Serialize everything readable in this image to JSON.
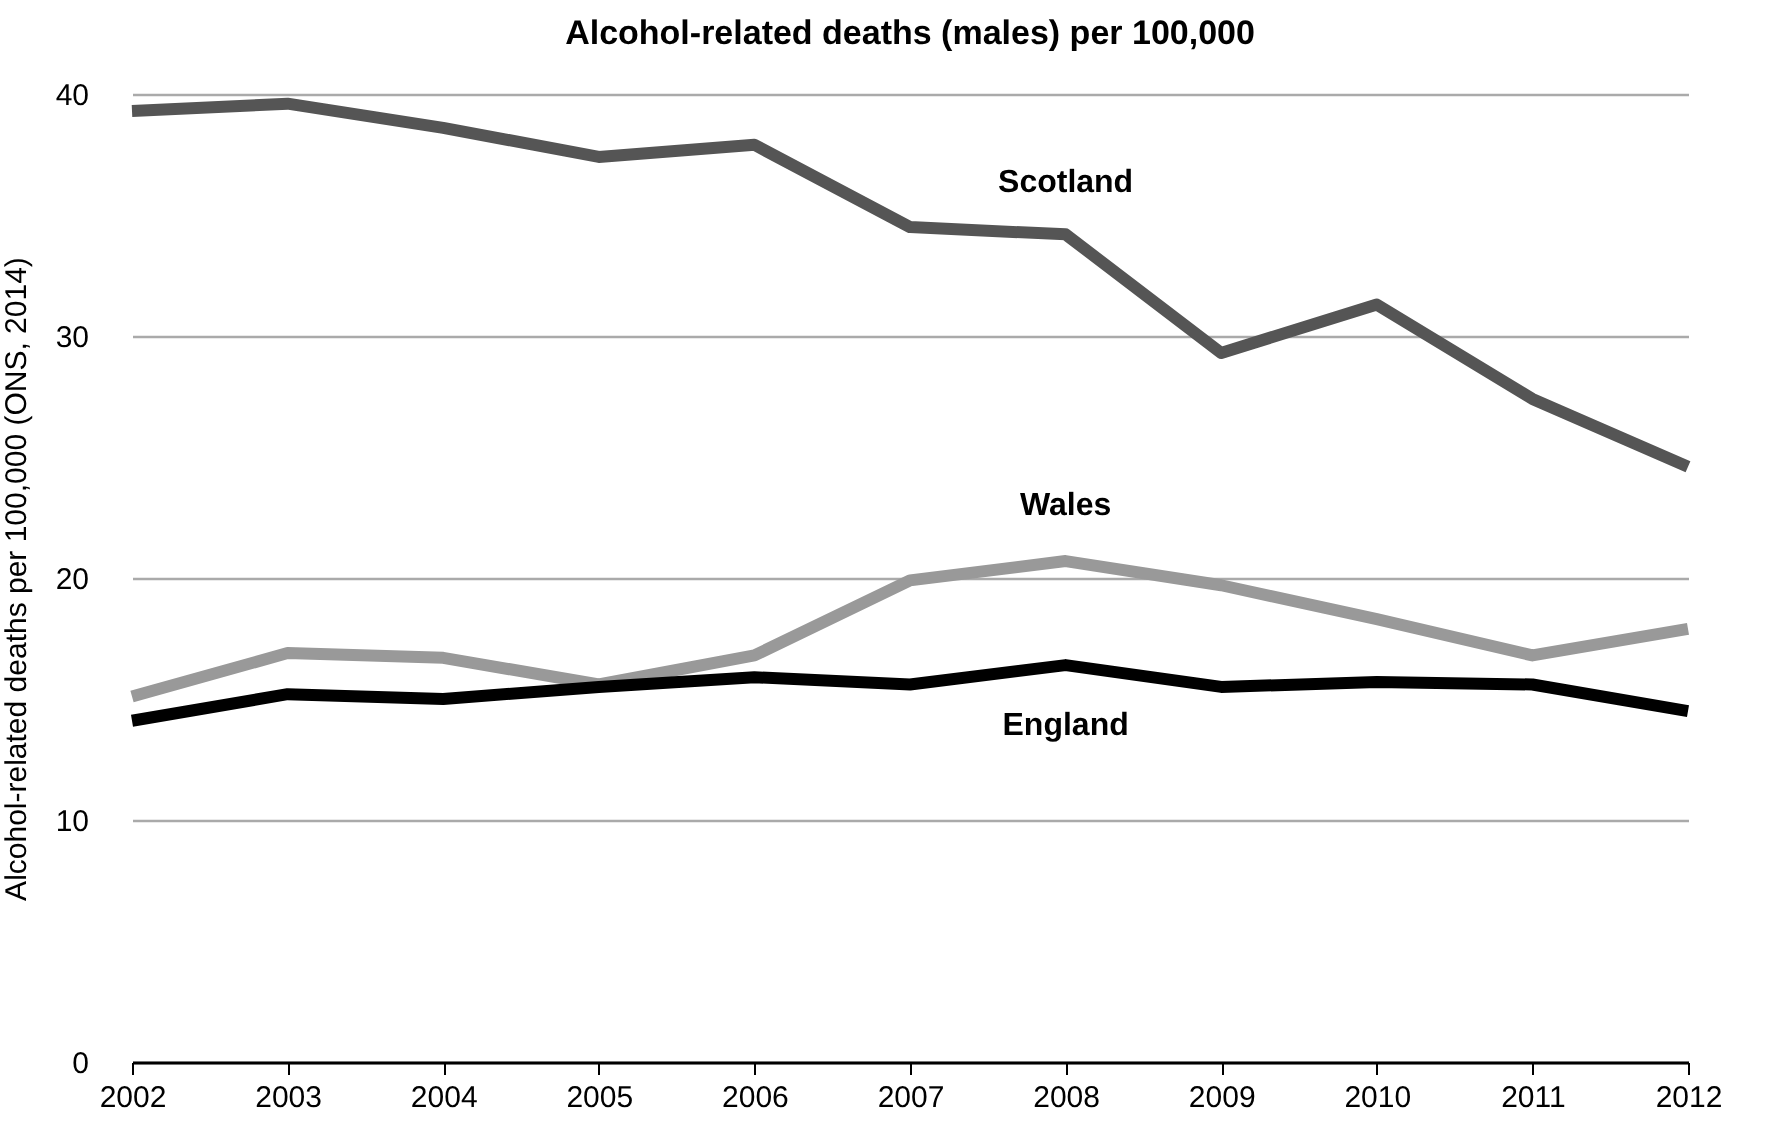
{
  "chart_data": {
    "type": "line",
    "title": "Alcohol-related deaths (males) per 100,000",
    "ylabel": "Alcohol-related deaths per 100,000 (ONS, 2014)",
    "x": [
      2002,
      2003,
      2004,
      2005,
      2006,
      2007,
      2008,
      2009,
      2010,
      2011,
      2012
    ],
    "series": [
      {
        "name": "Scotland",
        "color": "#555555",
        "values": [
          39.3,
          39.6,
          38.6,
          37.4,
          37.9,
          34.5,
          34.2,
          29.3,
          31.3,
          27.4,
          24.6
        ]
      },
      {
        "name": "Wales",
        "color": "#999999",
        "values": [
          15.1,
          16.9,
          16.7,
          15.6,
          16.8,
          19.9,
          20.7,
          19.7,
          18.3,
          16.8,
          17.9
        ]
      },
      {
        "name": "England",
        "color": "#000000",
        "values": [
          14.1,
          15.2,
          15.0,
          15.5,
          15.9,
          15.6,
          16.4,
          15.5,
          15.7,
          15.6,
          14.5
        ]
      }
    ],
    "xlim": [
      2002,
      2012
    ],
    "xticks": [
      2002,
      2003,
      2004,
      2005,
      2006,
      2007,
      2008,
      2009,
      2010,
      2011,
      2012
    ],
    "ylim": [
      0,
      40
    ],
    "yticks": [
      0,
      10,
      20,
      30,
      40
    ],
    "grid": "y",
    "legend": false,
    "marker": "none",
    "line_style": "solid"
  }
}
